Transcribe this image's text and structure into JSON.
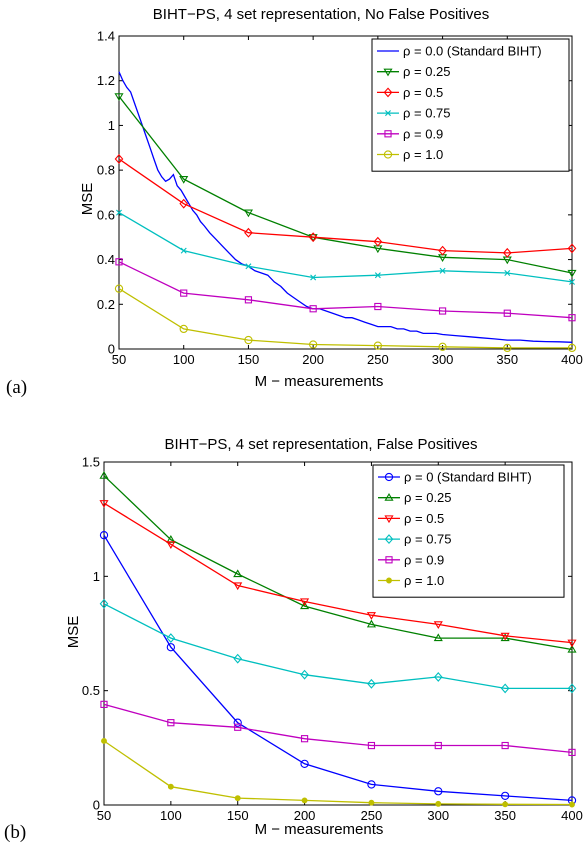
{
  "chart_data": [
    {
      "type": "line",
      "panel_label": "(a)",
      "title": "BIHT−PS, 4 set representation, No False Positives",
      "xlabel": "M − measurements",
      "ylabel": "MSE",
      "xlim": [
        50,
        400
      ],
      "ylim": [
        0,
        1.4
      ],
      "xticks": [
        50,
        100,
        150,
        200,
        250,
        300,
        350,
        400
      ],
      "yticks": [
        0,
        0.2,
        0.4,
        0.6,
        0.8,
        1,
        1.2,
        1.4
      ],
      "ytick_labels": [
        "0",
        "0.2",
        "0.4",
        "0.6",
        "0.8",
        "1",
        "1.2",
        "1.4"
      ],
      "legend_position": "top-right",
      "grid": false,
      "series": [
        {
          "name": "ρ = 0.0 (Standard BIHT)",
          "color": "#0000ff",
          "marker": "none",
          "x": [
            50,
            53,
            56,
            59,
            62,
            65,
            68,
            71,
            74,
            77,
            80,
            83,
            86,
            89,
            92,
            95,
            98,
            101,
            104,
            107,
            110,
            113,
            116,
            120,
            125,
            130,
            135,
            140,
            145,
            150,
            155,
            160,
            165,
            170,
            175,
            180,
            185,
            190,
            195,
            200,
            205,
            210,
            215,
            220,
            225,
            230,
            235,
            240,
            245,
            250,
            255,
            260,
            265,
            270,
            275,
            280,
            285,
            290,
            295,
            300,
            310,
            320,
            330,
            340,
            350,
            360,
            370,
            380,
            390,
            400
          ],
          "y": [
            1.24,
            1.2,
            1.17,
            1.15,
            1.1,
            1.05,
            1.0,
            0.95,
            0.9,
            0.85,
            0.8,
            0.77,
            0.75,
            0.76,
            0.78,
            0.73,
            0.71,
            0.68,
            0.65,
            0.62,
            0.6,
            0.57,
            0.55,
            0.52,
            0.49,
            0.46,
            0.43,
            0.4,
            0.38,
            0.37,
            0.35,
            0.34,
            0.33,
            0.3,
            0.28,
            0.25,
            0.23,
            0.21,
            0.19,
            0.18,
            0.18,
            0.17,
            0.16,
            0.15,
            0.14,
            0.14,
            0.13,
            0.12,
            0.11,
            0.1,
            0.1,
            0.1,
            0.09,
            0.09,
            0.08,
            0.08,
            0.07,
            0.07,
            0.07,
            0.065,
            0.06,
            0.055,
            0.05,
            0.045,
            0.04,
            0.04,
            0.035,
            0.033,
            0.032,
            0.03
          ]
        },
        {
          "name": "ρ = 0.25",
          "color": "#008000",
          "marker": "triangle-down",
          "x": [
            50,
            100,
            150,
            200,
            250,
            300,
            350,
            400
          ],
          "y": [
            1.13,
            0.76,
            0.61,
            0.5,
            0.45,
            0.41,
            0.4,
            0.34
          ]
        },
        {
          "name": "ρ = 0.5",
          "color": "#ff0000",
          "marker": "diamond",
          "x": [
            50,
            100,
            150,
            200,
            250,
            300,
            350,
            400
          ],
          "y": [
            0.85,
            0.65,
            0.52,
            0.5,
            0.48,
            0.44,
            0.43,
            0.45
          ]
        },
        {
          "name": "ρ = 0.75",
          "color": "#00bfbf",
          "marker": "x",
          "x": [
            50,
            100,
            150,
            200,
            250,
            300,
            350,
            400
          ],
          "y": [
            0.61,
            0.44,
            0.37,
            0.32,
            0.33,
            0.35,
            0.34,
            0.3
          ]
        },
        {
          "name": "ρ = 0.9",
          "color": "#bf00bf",
          "marker": "square",
          "x": [
            50,
            100,
            150,
            200,
            250,
            300,
            350,
            400
          ],
          "y": [
            0.39,
            0.25,
            0.22,
            0.18,
            0.19,
            0.17,
            0.16,
            0.14
          ]
        },
        {
          "name": "ρ = 1.0",
          "color": "#bfbf00",
          "marker": "circle",
          "x": [
            50,
            100,
            150,
            200,
            250,
            300,
            350,
            400
          ],
          "y": [
            0.27,
            0.09,
            0.04,
            0.02,
            0.015,
            0.01,
            0.005,
            0.005
          ]
        }
      ]
    },
    {
      "type": "line",
      "panel_label": "(b)",
      "title": "BIHT−PS, 4 set representation, False Positives",
      "xlabel": "M − measurements",
      "ylabel": "MSE",
      "xlim": [
        50,
        400
      ],
      "ylim": [
        0,
        1.5
      ],
      "xticks": [
        50,
        100,
        150,
        200,
        250,
        300,
        350,
        400
      ],
      "yticks": [
        0,
        0.5,
        1,
        1.5
      ],
      "ytick_labels": [
        "0",
        "0.5",
        "1",
        "1.5"
      ],
      "legend_position": "top-right",
      "grid": false,
      "series": [
        {
          "name": "ρ = 0 (Standard BIHT)",
          "color": "#0000ff",
          "marker": "circle",
          "x": [
            50,
            100,
            150,
            200,
            250,
            300,
            350,
            400
          ],
          "y": [
            1.18,
            0.69,
            0.36,
            0.18,
            0.09,
            0.06,
            0.04,
            0.02
          ]
        },
        {
          "name": "ρ = 0.25",
          "color": "#008000",
          "marker": "triangle-up",
          "x": [
            50,
            100,
            150,
            200,
            250,
            300,
            350,
            400
          ],
          "y": [
            1.44,
            1.16,
            1.01,
            0.87,
            0.79,
            0.73,
            0.73,
            0.68
          ]
        },
        {
          "name": "ρ = 0.5",
          "color": "#ff0000",
          "marker": "triangle-down",
          "x": [
            50,
            100,
            150,
            200,
            250,
            300,
            350,
            400
          ],
          "y": [
            1.32,
            1.14,
            0.96,
            0.89,
            0.83,
            0.79,
            0.74,
            0.71
          ]
        },
        {
          "name": "ρ = 0.75",
          "color": "#00bfbf",
          "marker": "diamond",
          "x": [
            50,
            100,
            150,
            200,
            250,
            300,
            350,
            400
          ],
          "y": [
            0.88,
            0.73,
            0.64,
            0.57,
            0.53,
            0.56,
            0.51,
            0.51
          ]
        },
        {
          "name": "ρ = 0.9",
          "color": "#bf00bf",
          "marker": "square",
          "x": [
            50,
            100,
            150,
            200,
            250,
            300,
            350,
            400
          ],
          "y": [
            0.44,
            0.36,
            0.34,
            0.29,
            0.26,
            0.26,
            0.26,
            0.23
          ]
        },
        {
          "name": "ρ = 1.0",
          "color": "#bfbf00",
          "marker": "dot",
          "x": [
            50,
            100,
            150,
            200,
            250,
            300,
            350,
            400
          ],
          "y": [
            0.28,
            0.08,
            0.03,
            0.02,
            0.01,
            0.005,
            0.003,
            0.002
          ]
        }
      ]
    }
  ]
}
